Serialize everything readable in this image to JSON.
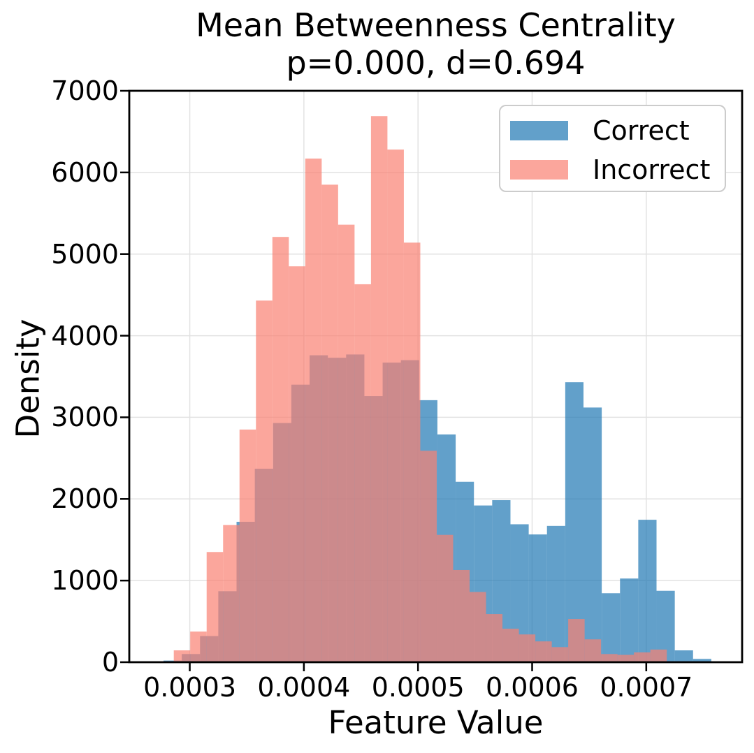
{
  "figure": {
    "title_line1": "Mean Betweenness Centrality",
    "title_line2": "p=0.000, d=0.694",
    "xlabel": "Feature Value",
    "ylabel": "Density"
  },
  "chart_data": {
    "type": "bar",
    "subtype": "overlaid-histogram",
    "title": "Mean Betweenness Centrality",
    "subtitle": "p=0.000, d=0.694",
    "xlabel": "Feature Value",
    "ylabel": "Density",
    "xlim": [
      0.000247,
      0.000784
    ],
    "ylim": [
      0,
      7000
    ],
    "grid": true,
    "grid_color": "#e2e2e2",
    "legend_position": "upper right",
    "xticks": {
      "values": [
        0.0003,
        0.0004,
        0.0005,
        0.0006,
        0.0007
      ],
      "labels": [
        "0.0003",
        "0.0004",
        "0.0005",
        "0.0006",
        "0.0007"
      ]
    },
    "yticks": {
      "values": [
        0,
        1000,
        2000,
        3000,
        4000,
        5000,
        6000,
        7000
      ],
      "labels": [
        "0",
        "1000",
        "2000",
        "3000",
        "4000",
        "5000",
        "6000",
        "7000"
      ]
    },
    "series": [
      {
        "name": "Correct",
        "color": "#1f77b4",
        "opacity": 0.7,
        "bin_start": 0.000277,
        "bin_width": 1.6e-05,
        "counts": [
          20,
          100,
          320,
          870,
          1720,
          2370,
          2930,
          3400,
          3760,
          3730,
          3770,
          3260,
          3670,
          3700,
          3210,
          2790,
          2210,
          1920,
          1985,
          1690,
          1565,
          1670,
          3430,
          3120,
          845,
          1025,
          1745,
          875,
          145,
          40
        ]
      },
      {
        "name": "Incorrect",
        "color": "#fa8072",
        "opacity": 0.7,
        "bin_start": 0.000286,
        "bin_width": 1.44e-05,
        "counts": [
          145,
          375,
          1350,
          1680,
          2850,
          4430,
          5210,
          4850,
          6170,
          5850,
          5360,
          4630,
          6690,
          6280,
          5140,
          2590,
          1560,
          1130,
          860,
          590,
          410,
          340,
          255,
          185,
          530,
          280,
          100,
          90,
          120,
          155
        ]
      }
    ]
  }
}
